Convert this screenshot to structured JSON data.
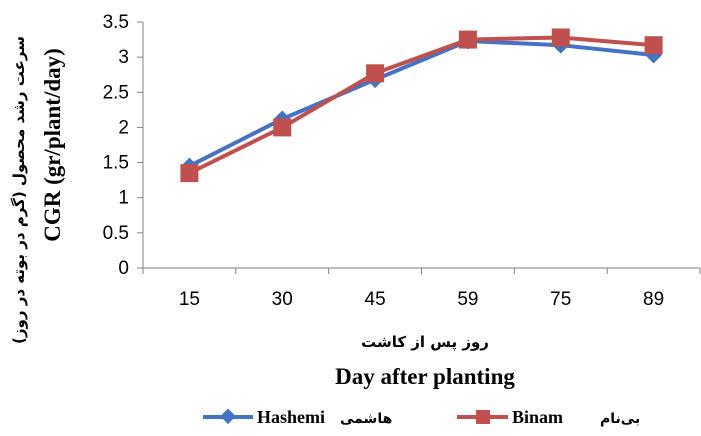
{
  "chart_data": {
    "type": "line",
    "title": "",
    "categories": [
      "15",
      "30",
      "45",
      "59",
      "75",
      "89"
    ],
    "series": [
      {
        "name": "Hashemi",
        "name_fa": "هاشمی",
        "color": "#4472C4",
        "marker": "diamond",
        "values": [
          1.45,
          2.12,
          2.68,
          3.23,
          3.17,
          3.03
        ]
      },
      {
        "name": "Binam",
        "name_fa": "بی‌نام",
        "color": "#C0504D",
        "marker": "square",
        "values": [
          1.35,
          2.0,
          2.77,
          3.25,
          3.28,
          3.17
        ]
      }
    ],
    "xlabel": "Day after planting",
    "xlabel_fa": "روز پس از کاشت",
    "ylabel": "CGR (gr/plant/day)",
    "ylabel_fa": "سرعت رشد محصول (گرم در بوته در روز)",
    "ylim": [
      0,
      3.5
    ],
    "yticks": [
      "0",
      "0.5",
      "1",
      "1.5",
      "2",
      "2.5",
      "3",
      "3.5"
    ],
    "grid": false,
    "legend": "bottom"
  }
}
